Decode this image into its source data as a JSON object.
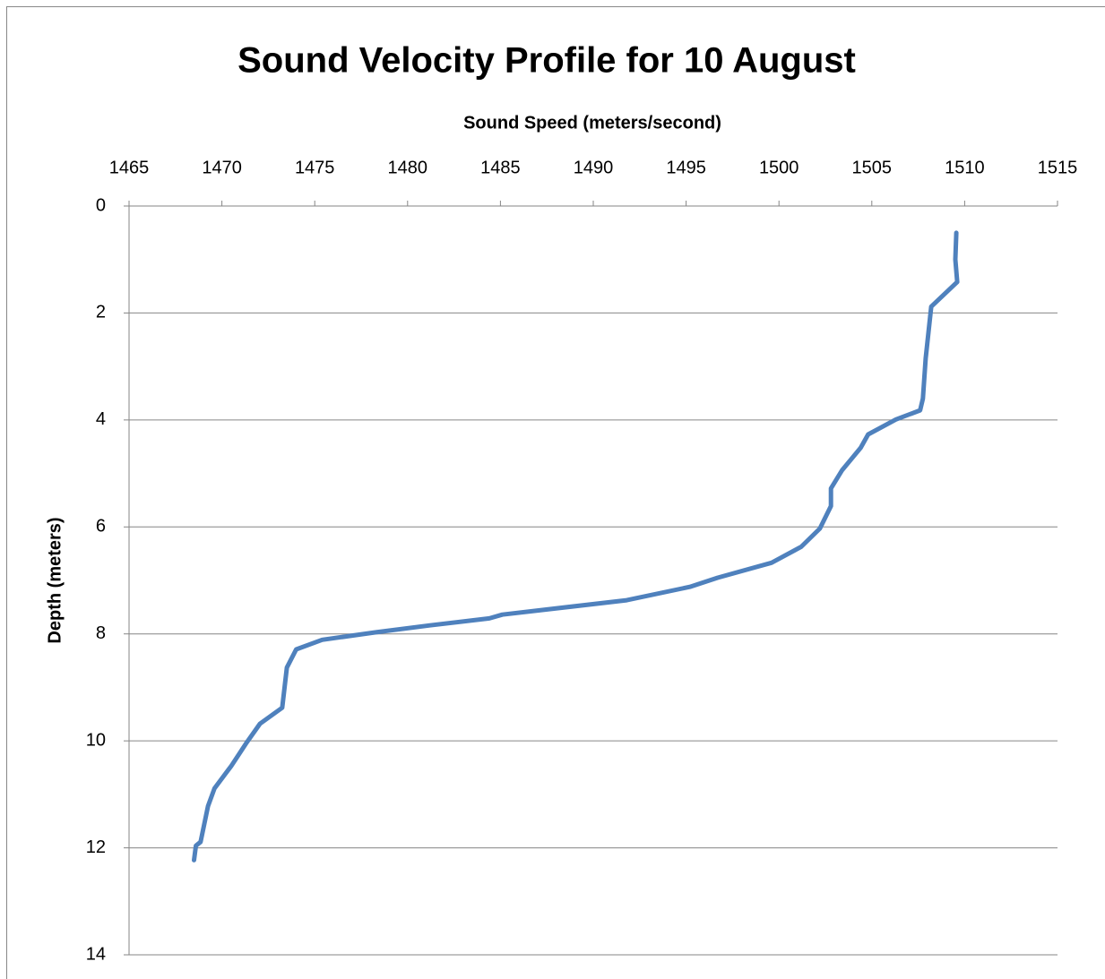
{
  "chart_data": {
    "type": "line",
    "title": "Sound Velocity Profile for 10 August",
    "xlabel": "Sound Speed (meters/second)",
    "ylabel": "Depth (meters)",
    "color": "#4f81bd",
    "x": [
      1509.55,
      1509.5,
      1509.6,
      1508.2,
      1507.9,
      1507.75,
      1507.6,
      1506.3,
      1504.8,
      1504.4,
      1503.4,
      1502.8,
      1502.8,
      1502.2,
      1501.2,
      1499.6,
      1496.7,
      1495.2,
      1491.8,
      1485.1,
      1484.4,
      1481.2,
      1478.3,
      1475.4,
      1474,
      1473.5,
      1473.25,
      1472.05,
      1471.3,
      1470.5,
      1469.6,
      1469.25,
      1468.85,
      1468.6,
      1468.5
    ],
    "values": [
      0.5,
      1.0,
      1.42,
      1.88,
      2.85,
      3.6,
      3.82,
      3.99,
      4.27,
      4.52,
      4.94,
      5.28,
      5.61,
      6.03,
      6.37,
      6.67,
      6.95,
      7.12,
      7.37,
      7.64,
      7.71,
      7.84,
      7.97,
      8.11,
      8.29,
      8.63,
      9.38,
      9.68,
      10.05,
      10.47,
      10.89,
      11.22,
      11.89,
      11.96,
      12.23
    ],
    "xlim": [
      1465,
      1515
    ],
    "xticks": [
      1465,
      1470,
      1475,
      1480,
      1485,
      1490,
      1495,
      1500,
      1505,
      1510,
      1515
    ],
    "ylim": [
      0,
      14
    ],
    "yticks": [
      0,
      2,
      4,
      6,
      8,
      10,
      12,
      14
    ],
    "y_inverted": true,
    "x_axis_top": true,
    "grid": true
  }
}
